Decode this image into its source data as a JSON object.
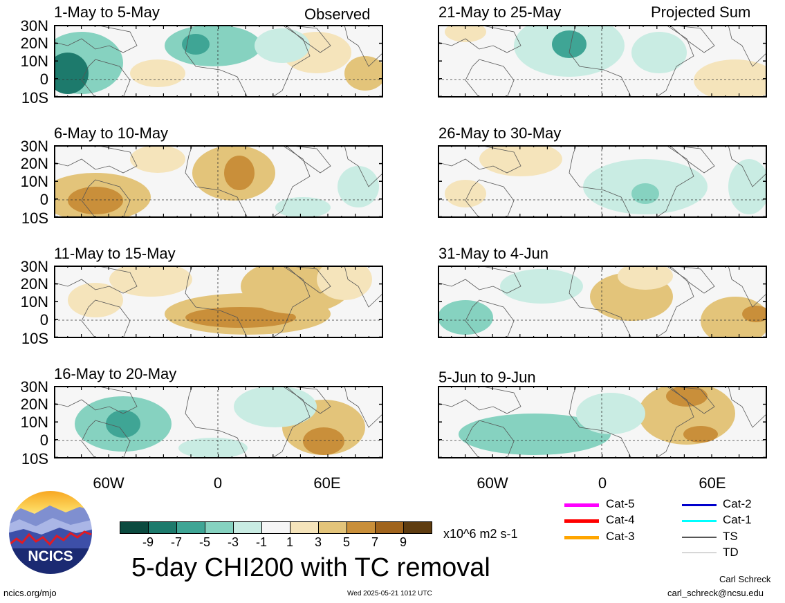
{
  "header": {
    "left_tag": "Observed",
    "right_tag": "Projected Sum"
  },
  "panels_left": [
    {
      "title": "1-May to 5-May"
    },
    {
      "title": "6-May to 10-May"
    },
    {
      "title": "11-May to 15-May"
    },
    {
      "title": "16-May to 20-May"
    }
  ],
  "panels_right": [
    {
      "title": "21-May to 25-May"
    },
    {
      "title": "26-May to 30-May"
    },
    {
      "title": "31-May to 4-Jun"
    },
    {
      "title": "5-Jun to 9-Jun"
    }
  ],
  "lat_labels": [
    "30N",
    "20N",
    "10N",
    "0",
    "10S"
  ],
  "lon_labels": [
    "60W",
    "0",
    "60E"
  ],
  "colorbar": {
    "ticks": [
      "-9",
      "-7",
      "-5",
      "-3",
      "-1",
      "1",
      "3",
      "5",
      "7",
      "9"
    ],
    "colors": [
      "#0b4a3f",
      "#1d7a6c",
      "#3fa595",
      "#86d2c0",
      "#c9ece3",
      "#f6f6f6",
      "#f5e4bb",
      "#e3c47a",
      "#c98f3a",
      "#a0641d",
      "#5e3c10"
    ],
    "units": "x10^6 m2 s-1"
  },
  "tc_legend": [
    {
      "label": "Cat-5",
      "color": "#ff00ff"
    },
    {
      "label": "Cat-4",
      "color": "#ff0000"
    },
    {
      "label": "Cat-3",
      "color": "#ffa500"
    },
    {
      "label": "Cat-2",
      "color": "#0000cc"
    },
    {
      "label": "Cat-1",
      "color": "#00ffff"
    },
    {
      "label": "TS",
      "color": "#555555"
    },
    {
      "label": "TD",
      "color": "#aaaaaa"
    }
  ],
  "logo": {
    "text": "NCICS"
  },
  "main_title": "5-day CHI200 with TC removal",
  "footer": {
    "url": "ncics.org/mjo",
    "timestamp": "Wed 2025-05-21 1012 UTC",
    "author": "Carl Schreck",
    "email": "carl_schreck@ncsu.edu"
  }
}
